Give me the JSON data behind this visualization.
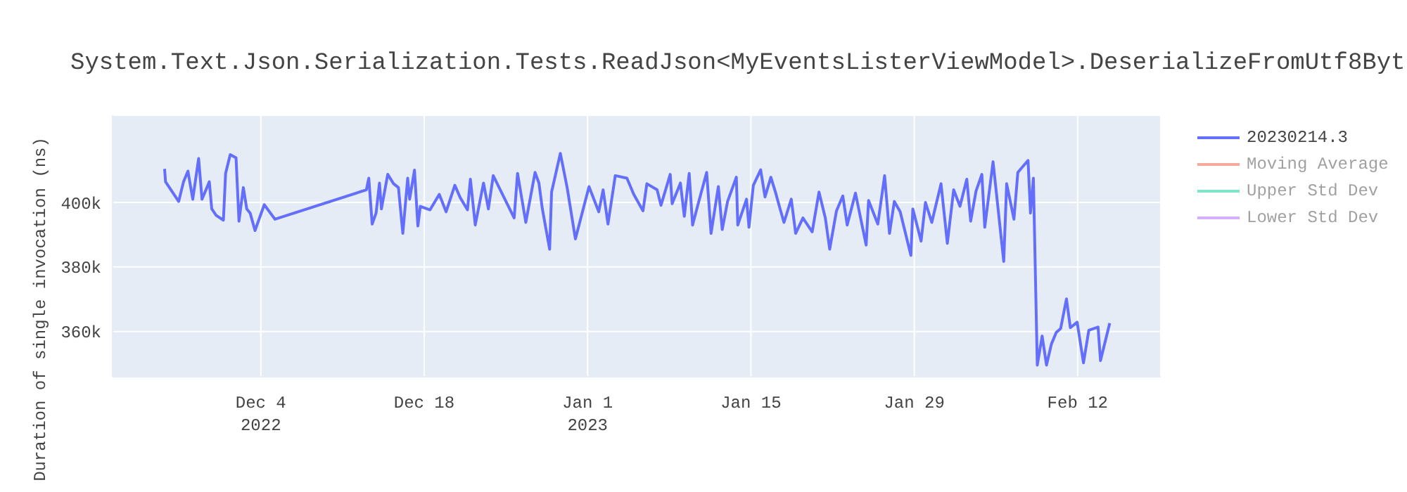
{
  "chart_data": {
    "type": "line",
    "title": "System.Text.Json.Serialization.Tests.ReadJson<MyEventsListerViewModel>.DeserializeFromUtf8Byt",
    "ylabel": "Duration of single invocation (ns)",
    "x": [
      "2022-11-25T18:00",
      "2022-11-25T20:00",
      "2022-11-26T23:00",
      "2022-11-27T09:00",
      "2022-11-27T18:00",
      "2022-11-28T04:00",
      "2022-11-28T16:00",
      "2022-11-28T23:00",
      "2022-11-29T14:00",
      "2022-11-29T19:00",
      "2022-11-30T04:00",
      "2022-11-30T19:00",
      "2022-11-30T23:30",
      "2022-12-01T09:00",
      "2022-12-01T21:00",
      "2022-12-02T03:00",
      "2022-12-02T12:00",
      "2022-12-02T19:00",
      "2022-12-03T02:00",
      "2022-12-03T12:00",
      "2022-12-04T07:00",
      "2022-12-05T05:00",
      "2022-12-13T01:00",
      "2022-12-13T06:00",
      "2022-12-13T13:00",
      "2022-12-13T21:00",
      "2022-12-14T04:00",
      "2022-12-14T08:00",
      "2022-12-14T21:00",
      "2022-12-15T09:00",
      "2022-12-15T19:00",
      "2022-12-16T04:00",
      "2022-12-16T14:00",
      "2022-12-16T18:00",
      "2022-12-17T04:00",
      "2022-12-17T11:00",
      "2022-12-17T16:00",
      "2022-12-18T12:00",
      "2022-12-19T07:00",
      "2022-12-19T21:00",
      "2022-12-20T15:00",
      "2022-12-21T02:00",
      "2022-12-21T17:00",
      "2022-12-21T23:00",
      "2022-12-22T09:00",
      "2022-12-23T02:00",
      "2022-12-23T12:00",
      "2022-12-23T22:00",
      "2022-12-25T17:00",
      "2022-12-26T00:00",
      "2022-12-26T17:00",
      "2022-12-27T12:00",
      "2022-12-27T20:00",
      "2022-12-28T03:00",
      "2022-12-28T18:00",
      "2022-12-28T22:00",
      "2022-12-29T16:00",
      "2022-12-30T06:00",
      "2022-12-30T23:00",
      "2023-01-01T03:00",
      "2023-01-01T23:00",
      "2023-01-02T08:00",
      "2023-01-02T18:00",
      "2023-01-03T09:00",
      "2023-01-04T09:00",
      "2023-01-04T23:00",
      "2023-01-05T18:00",
      "2023-01-06T02:00",
      "2023-01-06T23:00",
      "2023-01-07T07:00",
      "2023-01-08T02:00",
      "2023-01-08T06:00",
      "2023-01-08T23:00",
      "2023-01-09T07:00",
      "2023-01-09T17:00",
      "2023-01-10T00:00",
      "2023-01-10T14:00",
      "2023-01-11T05:00",
      "2023-01-11T14:00",
      "2023-01-12T05:00",
      "2023-01-12T13:00",
      "2023-01-13T00:00",
      "2023-01-13T18:00",
      "2023-01-13T21:00",
      "2023-01-14T15:00",
      "2023-01-14T20:00",
      "2023-01-15T05:00",
      "2023-01-15T20:00",
      "2023-01-16T05:00",
      "2023-01-16T17:00",
      "2023-01-17T03:00",
      "2023-01-17T12:00",
      "2023-01-17T20:00",
      "2023-01-18T11:00",
      "2023-01-18T20:00",
      "2023-01-19T11:00",
      "2023-01-20T06:00",
      "2023-01-20T20:00",
      "2023-01-21T09:00",
      "2023-01-21T18:00",
      "2023-01-22T08:00",
      "2023-01-22T21:00",
      "2023-01-23T06:00",
      "2023-01-23T23:00",
      "2023-01-24T21:00",
      "2023-01-25T02:00",
      "2023-01-25T21:00",
      "2023-01-26T11:00",
      "2023-01-26T21:00",
      "2023-01-27T07:00",
      "2023-01-27T19:00",
      "2023-01-28T17:00",
      "2023-01-28T21:00",
      "2023-01-29T14:00",
      "2023-01-29T23:00",
      "2023-01-30T12:00",
      "2023-01-31T07:00",
      "2023-01-31T20:00",
      "2023-02-01T09:00",
      "2023-02-01T22:00",
      "2023-02-02T12:00",
      "2023-02-02T20:00",
      "2023-02-03T07:00",
      "2023-02-03T19:00",
      "2023-02-04T01:00",
      "2023-02-04T18:00",
      "2023-02-05T16:00",
      "2023-02-05T22:00",
      "2023-02-06T13:00",
      "2023-02-06T21:00",
      "2023-02-07T18:00",
      "2023-02-07T23:00",
      "2023-02-08T05:00",
      "2023-02-08T13:00",
      "2023-02-08T23:00",
      "2023-02-09T08:00",
      "2023-02-09T18:00",
      "2023-02-10T04:00",
      "2023-02-10T13:00",
      "2023-02-11T01:00",
      "2023-02-11T09:00",
      "2023-02-11T23:00",
      "2023-02-12T12:00",
      "2023-02-12T23:00",
      "2023-02-13T18:00",
      "2023-02-13T23:00",
      "2023-02-14T18:00"
    ],
    "series": [
      {
        "name": "20230214.3",
        "color": "#636efa",
        "values": [
          410400,
          406400,
          400300,
          406400,
          409700,
          401000,
          413600,
          401000,
          406400,
          398000,
          396000,
          394500,
          409000,
          414800,
          413800,
          394200,
          404600,
          398000,
          396700,
          391300,
          399300,
          394800,
          403900,
          407500,
          393300,
          396700,
          406000,
          398000,
          408700,
          405800,
          404600,
          390400,
          407500,
          401000,
          410000,
          392700,
          398800,
          397700,
          402500,
          397100,
          405300,
          401500,
          397700,
          407200,
          393000,
          406000,
          398000,
          408300,
          395200,
          409000,
          393800,
          409300,
          406000,
          398000,
          385500,
          403200,
          415200,
          404600,
          388700,
          404900,
          397100,
          403900,
          393300,
          408300,
          407500,
          402500,
          397400,
          405800,
          403900,
          399100,
          408700,
          399600,
          406000,
          395700,
          409000,
          393000,
          401000,
          409300,
          390400,
          404900,
          391600,
          400300,
          407800,
          393000,
          401000,
          392300,
          405300,
          410100,
          401700,
          407800,
          402900,
          398000,
          393800,
          401000,
          390400,
          395200,
          390900,
          403200,
          395200,
          385500,
          397400,
          402000,
          393000,
          402900,
          386800,
          400600,
          393300,
          408300,
          390400,
          400300,
          397100,
          383600,
          398000,
          388000,
          400000,
          393800,
          405800,
          387300,
          403900,
          398800,
          407200,
          394200,
          403500,
          408700,
          392300,
          412600,
          381700,
          405800,
          394800,
          409300,
          413000,
          396700,
          407500,
          349600,
          358600,
          349600,
          356100,
          359700,
          360900,
          370100,
          361200,
          362900,
          350300,
          360400,
          361400,
          351000,
          362600
        ]
      },
      {
        "name": "Moving Average",
        "color": "#ef553b",
        "values": [
          null,
          null,
          null,
          null,
          null,
          null,
          null,
          null,
          null,
          null,
          null,
          null,
          null,
          null,
          null,
          null,
          null,
          null,
          null,
          null,
          null,
          null,
          null,
          null,
          null,
          null,
          null,
          null,
          null,
          null,
          null,
          null,
          null,
          null,
          null,
          null,
          null,
          null,
          null,
          null,
          null,
          null,
          null,
          null,
          null,
          null,
          null,
          null,
          null,
          null,
          null,
          null,
          null,
          null,
          null,
          null,
          null,
          null,
          null,
          null,
          null,
          null,
          null,
          null,
          null,
          null,
          null,
          null,
          null,
          null,
          null,
          null,
          null,
          null,
          null,
          null,
          null,
          null,
          null,
          null,
          null,
          null,
          null,
          null,
          null,
          null,
          null,
          null,
          null,
          null,
          null,
          null,
          null,
          null,
          null,
          null,
          null,
          null,
          null,
          null,
          null,
          null,
          null,
          null,
          null,
          null,
          null,
          null,
          null,
          null,
          null,
          null,
          null,
          null,
          null,
          null,
          null,
          null,
          null,
          null,
          null,
          null,
          null,
          null,
          null,
          null,
          null,
          null,
          null,
          null,
          null,
          null,
          null,
          null,
          null,
          null,
          null,
          null,
          null,
          null,
          null,
          null,
          null,
          null,
          null,
          null,
          null
        ]
      },
      {
        "name": "Upper Std Dev",
        "color": "#00cc96",
        "values": [
          null,
          null,
          null,
          null,
          null,
          null,
          null,
          null,
          null,
          null,
          null,
          null,
          null,
          null,
          null,
          null,
          null,
          null,
          null,
          null,
          null,
          null,
          null,
          null,
          null,
          null,
          null,
          null,
          null,
          null,
          null,
          null,
          null,
          null,
          null,
          null,
          null,
          null,
          null,
          null,
          null,
          null,
          null,
          null,
          null,
          null,
          null,
          null,
          null,
          null,
          null,
          null,
          null,
          null,
          null,
          null,
          null,
          null,
          null,
          null,
          null,
          null,
          null,
          null,
          null,
          null,
          null,
          null,
          null,
          null,
          null,
          null,
          null,
          null,
          null,
          null,
          null,
          null,
          null,
          null,
          null,
          null,
          null,
          null,
          null,
          null,
          null,
          null,
          null,
          null,
          null,
          null,
          null,
          null,
          null,
          null,
          null,
          null,
          null,
          null,
          null,
          null,
          null,
          null,
          null,
          null,
          null,
          null,
          null,
          null,
          null,
          null,
          null,
          null,
          null,
          null,
          null,
          null,
          null,
          null,
          null,
          null,
          null,
          null,
          null,
          null,
          null,
          null,
          null,
          null,
          null,
          null,
          null,
          null,
          null,
          null,
          null,
          null,
          null,
          null,
          null,
          null,
          null,
          null,
          null,
          null,
          null
        ]
      },
      {
        "name": "Lower Std Dev",
        "color": "#ab63fa",
        "values": [
          null,
          null,
          null,
          null,
          null,
          null,
          null,
          null,
          null,
          null,
          null,
          null,
          null,
          null,
          null,
          null,
          null,
          null,
          null,
          null,
          null,
          null,
          null,
          null,
          null,
          null,
          null,
          null,
          null,
          null,
          null,
          null,
          null,
          null,
          null,
          null,
          null,
          null,
          null,
          null,
          null,
          null,
          null,
          null,
          null,
          null,
          null,
          null,
          null,
          null,
          null,
          null,
          null,
          null,
          null,
          null,
          null,
          null,
          null,
          null,
          null,
          null,
          null,
          null,
          null,
          null,
          null,
          null,
          null,
          null,
          null,
          null,
          null,
          null,
          null,
          null,
          null,
          null,
          null,
          null,
          null,
          null,
          null,
          null,
          null,
          null,
          null,
          null,
          null,
          null,
          null,
          null,
          null,
          null,
          null,
          null,
          null,
          null,
          null,
          null,
          null,
          null,
          null,
          null,
          null,
          null,
          null,
          null,
          null,
          null,
          null,
          null,
          null,
          null,
          null,
          null,
          null,
          null,
          null,
          null,
          null,
          null,
          null,
          null,
          null,
          null,
          null,
          null,
          null,
          null,
          null,
          null,
          null,
          null,
          null,
          null,
          null,
          null,
          null,
          null,
          null,
          null,
          null,
          null,
          null,
          null,
          null
        ]
      }
    ],
    "xlim": [
      "2022-11-21T07:00",
      "2023-02-19T03:00"
    ],
    "xticks": [
      {
        "value": "2022-12-04",
        "label": "Dec 4\n2022"
      },
      {
        "value": "2022-12-18",
        "label": "Dec 18"
      },
      {
        "value": "2023-01-01",
        "label": "Jan 1\n2023"
      },
      {
        "value": "2023-01-15",
        "label": "Jan 15"
      },
      {
        "value": "2023-01-29",
        "label": "Jan 29"
      },
      {
        "value": "2023-02-12",
        "label": "Feb 12"
      }
    ],
    "ylim": [
      346000,
      427000
    ],
    "yticks": [
      {
        "value": 360000,
        "label": "360k"
      },
      {
        "value": 380000,
        "label": "380k"
      },
      {
        "value": 400000,
        "label": "400k"
      }
    ],
    "grid": true,
    "legend": "top right",
    "marker": "none",
    "line_style": "solid"
  }
}
